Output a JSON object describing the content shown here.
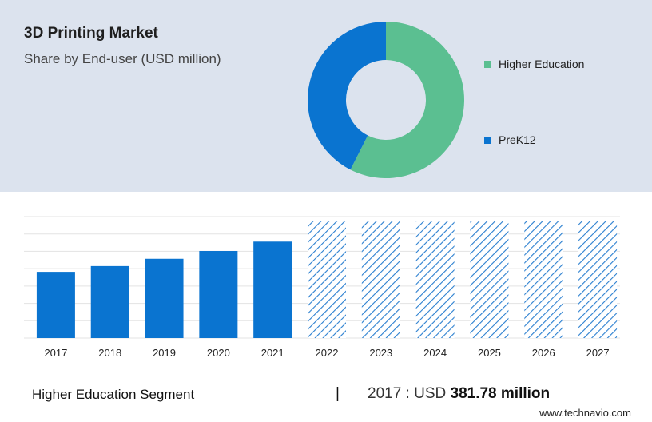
{
  "header": {
    "title": "3D Printing Market",
    "subtitle": "Share by End-user (USD million)"
  },
  "donut": {
    "type": "pie",
    "slices": [
      {
        "label": "Higher Education",
        "share": 0.575,
        "color": "#5bbf91"
      },
      {
        "label": "PreK12",
        "share": 0.425,
        "color": "#0a74d0"
      }
    ]
  },
  "chart_data": {
    "type": "bar",
    "categories": [
      "2017",
      "2018",
      "2019",
      "2020",
      "2021",
      "2022",
      "2023",
      "2024",
      "2025",
      "2026",
      "2027"
    ],
    "values": [
      381.78,
      415,
      457,
      502,
      556,
      null,
      null,
      null,
      null,
      null,
      null
    ],
    "forecast_categories": [
      "2022",
      "2023",
      "2024",
      "2025",
      "2026",
      "2027"
    ],
    "ylim": [
      0,
      700
    ],
    "grid": true,
    "colors": {
      "bar": "#0a74d0",
      "forecast_hatch": "#2a7fd0"
    }
  },
  "footer": {
    "segment": "Higher Education Segment",
    "separator": "|",
    "value_prefix": "2017 : USD",
    "value_amount": "381.78 million",
    "source": "www.technavio.com"
  }
}
